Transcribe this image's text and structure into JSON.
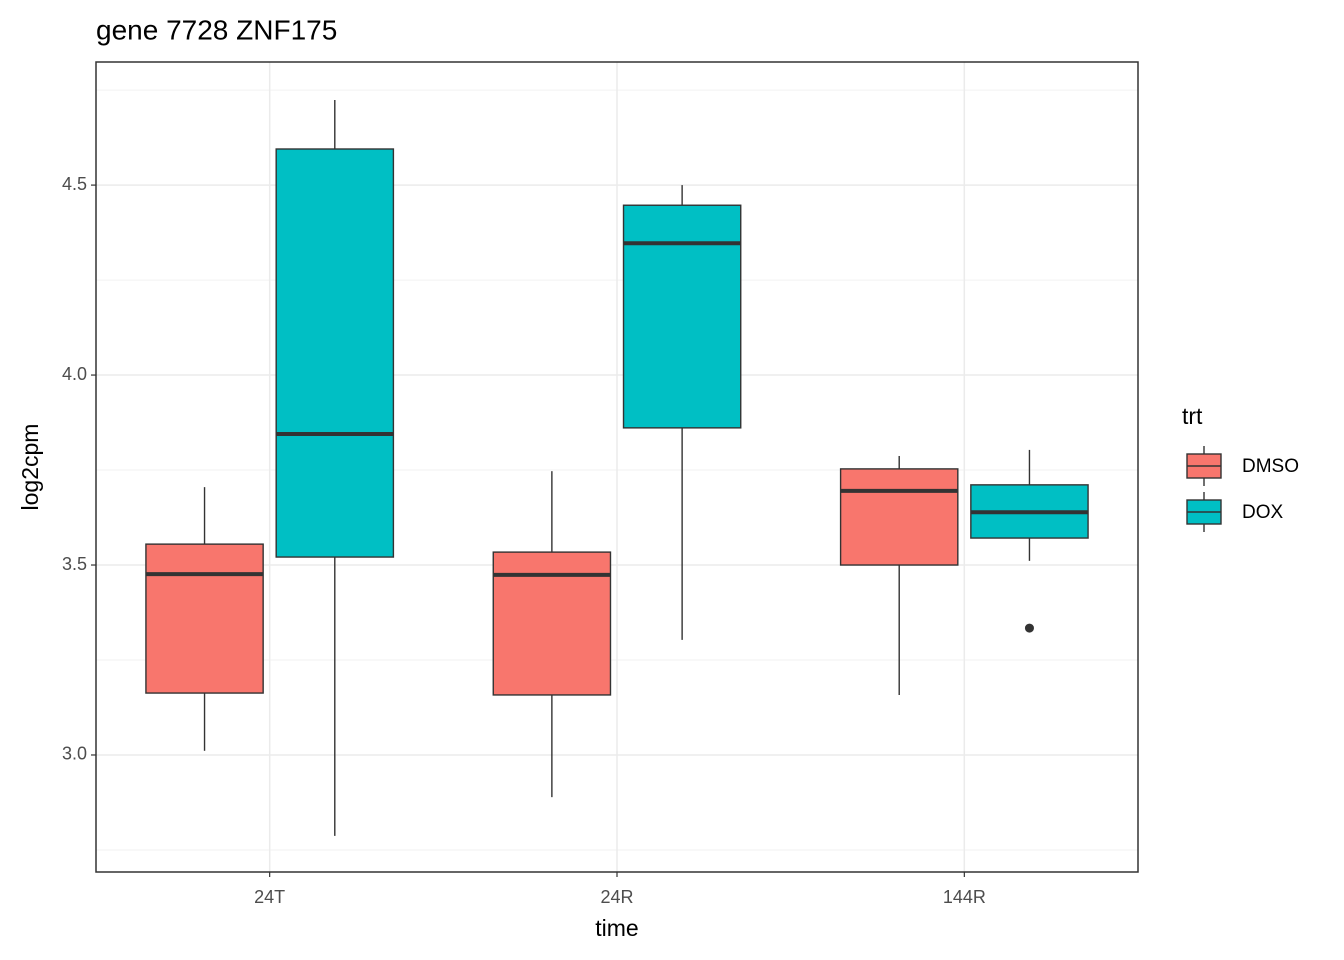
{
  "chart_data": {
    "type": "boxplot",
    "title": "gene 7728 ZNF175",
    "x_label": "time",
    "y_label": "log2cpm",
    "legend_title": "trt",
    "legend_position": "right",
    "categories": [
      "24T",
      "24R",
      "144R"
    ],
    "ylim": [
      2.692,
      4.824
    ],
    "yticks": [
      {
        "value": 3.0,
        "label": "3.0"
      },
      {
        "value": 3.5,
        "label": "3.5"
      },
      {
        "value": 4.0,
        "label": "4.0"
      },
      {
        "value": 4.5,
        "label": "4.5"
      }
    ],
    "y_minor_grid": [
      2.75,
      3.25,
      3.75,
      4.25,
      4.75
    ],
    "grid": true,
    "series": [
      {
        "name": "DMSO",
        "color": "#F8766D",
        "boxes": [
          {
            "low": 3.011,
            "q1": 3.163,
            "median": 3.476,
            "q3": 3.555,
            "high": 3.705
          },
          {
            "low": 2.889,
            "q1": 3.158,
            "median": 3.474,
            "q3": 3.534,
            "high": 3.747
          },
          {
            "low": 3.158,
            "q1": 3.5,
            "median": 3.695,
            "q3": 3.753,
            "high": 3.787
          }
        ]
      },
      {
        "name": "DOX",
        "color": "#00BFC4",
        "boxes": [
          {
            "low": 2.787,
            "q1": 3.521,
            "median": 3.845,
            "q3": 4.595,
            "high": 4.724
          },
          {
            "low": 3.303,
            "q1": 3.861,
            "median": 4.347,
            "q3": 4.447,
            "high": 4.5
          },
          {
            "low": 3.511,
            "q1": 3.571,
            "median": 3.639,
            "q3": 3.711,
            "high": 3.803,
            "outliers": [
              3.334
            ]
          }
        ]
      }
    ]
  }
}
